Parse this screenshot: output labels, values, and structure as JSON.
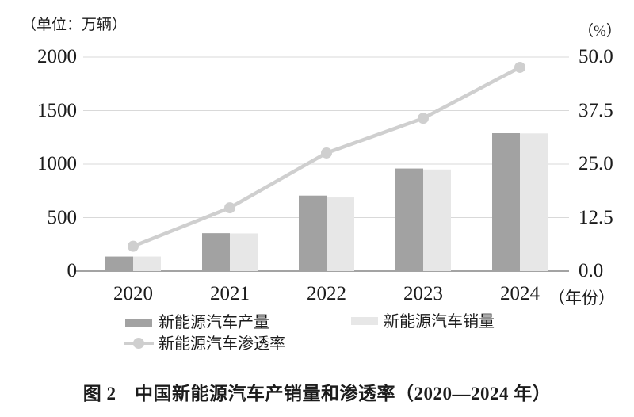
{
  "figure": {
    "unit_left": "（单位：万辆）",
    "unit_right": "（%）",
    "year_suffix": "（年份）",
    "caption": "图 2　中国新能源汽车产销量和渗透率（2020—2024 年）"
  },
  "legend": {
    "production_label": "新能源汽车产量",
    "sales_label": "新能源汽车销量",
    "penetration_label": "新能源汽车渗透率"
  },
  "chart_data": {
    "type": "bar",
    "subtype": "grouped-bars-with-line-overlay",
    "title": "图 2　中国新能源汽车产销量和渗透率（2020—2024 年）",
    "categories": [
      "2020",
      "2021",
      "2022",
      "2023",
      "2024"
    ],
    "series": [
      {
        "name": "新能源汽车产量",
        "type": "bar",
        "axis": "left",
        "values": [
          136.6,
          354.5,
          705.8,
          958.7,
          1288.8
        ]
      },
      {
        "name": "新能源汽车销量",
        "type": "bar",
        "axis": "left",
        "values": [
          136.7,
          352.1,
          688.7,
          949.5,
          1286.6
        ]
      },
      {
        "name": "新能源汽车渗透率",
        "type": "line",
        "axis": "right",
        "values": [
          5.8,
          14.8,
          27.6,
          35.7,
          47.6
        ]
      }
    ],
    "left_axis": {
      "label": "（单位：万辆）",
      "ticks": [
        "2000",
        "1500",
        "1000",
        "500",
        "0"
      ],
      "min": 0,
      "max": 2000
    },
    "right_axis": {
      "label": "（%）",
      "ticks": [
        "50.0",
        "37.5",
        "25.0",
        "12.5",
        "0.0"
      ],
      "min": 0,
      "max": 50
    },
    "x_axis": {
      "label": "（年份）"
    },
    "grid": true,
    "legend_position": "bottom",
    "colors": {
      "production": "#a2a2a2",
      "sales": "#e7e7e7",
      "line": "#cfcfcf",
      "grid": "#d9d9d9",
      "axis": "#a3a3a3",
      "text": "#1c1c1c"
    }
  }
}
